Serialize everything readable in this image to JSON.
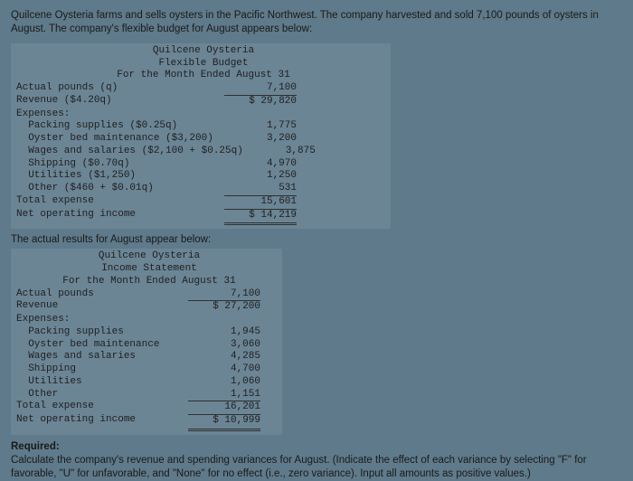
{
  "intro": "Quilcene Oysteria farms and sells oysters in the Pacific Northwest. The company harvested and sold 7,100 pounds of oysters in August. The company's flexible budget for August appears below:",
  "flex": {
    "title1": "Quilcene Oysteria",
    "title2": "Flexible Budget",
    "title3": "For the Month Ended August 31",
    "r_actual_pounds_l": "Actual pounds (q)",
    "r_actual_pounds_v": "7,100",
    "r_revenue_l": "Revenue ($4.20q)",
    "r_revenue_v": "$ 29,820",
    "r_expenses_l": "Expenses:",
    "r_packing_l": "  Packing supplies ($0.25q)",
    "r_packing_v": "1,775",
    "r_oyster_l": "  Oyster bed maintenance ($3,200)",
    "r_oyster_v": "3,200",
    "r_wages_l": "  Wages and salaries ($2,100 + $0.25q)",
    "r_wages_v": "3,875",
    "r_shipping_l": "  Shipping ($0.70q)",
    "r_shipping_v": "4,970",
    "r_util_l": "  Utilities ($1,250)",
    "r_util_v": "1,250",
    "r_other_l": "  Other ($460 + $0.01q)",
    "r_other_v": "531",
    "r_total_l": "Total expense",
    "r_total_v": "15,601",
    "r_noi_l": "Net operating income",
    "r_noi_v": "$ 14,219"
  },
  "subhead_actual": "The actual results for August appear below:",
  "actual": {
    "title1": "Quilcene Oysteria",
    "title2": "Income Statement",
    "title3": "For the Month Ended August 31",
    "r_actual_pounds_l": "Actual pounds",
    "r_actual_pounds_v": "7,100",
    "r_revenue_l": "Revenue",
    "r_revenue_v": "$ 27,200",
    "r_expenses_l": "Expenses:",
    "r_packing_l": "  Packing supplies",
    "r_packing_v": "1,945",
    "r_oyster_l": "  Oyster bed maintenance",
    "r_oyster_v": "3,060",
    "r_wages_l": "  Wages and salaries",
    "r_wages_v": "4,285",
    "r_shipping_l": "  Shipping",
    "r_shipping_v": "4,700",
    "r_util_l": "  Utilities",
    "r_util_v": "1,060",
    "r_other_l": "  Other",
    "r_other_v": "1,151",
    "r_total_l": "Total expense",
    "r_total_v": "16,201",
    "r_noi_l": "Net operating income",
    "r_noi_v": "$ 10,999"
  },
  "required": {
    "label": "Required:",
    "text": "Calculate the company's revenue and spending variances for August. (Indicate the effect of each variance by selecting \"F\" for favorable, \"U\" for unfavorable, and \"None\" for no effect (i.e., zero variance). Input all amounts as positive values.)"
  }
}
